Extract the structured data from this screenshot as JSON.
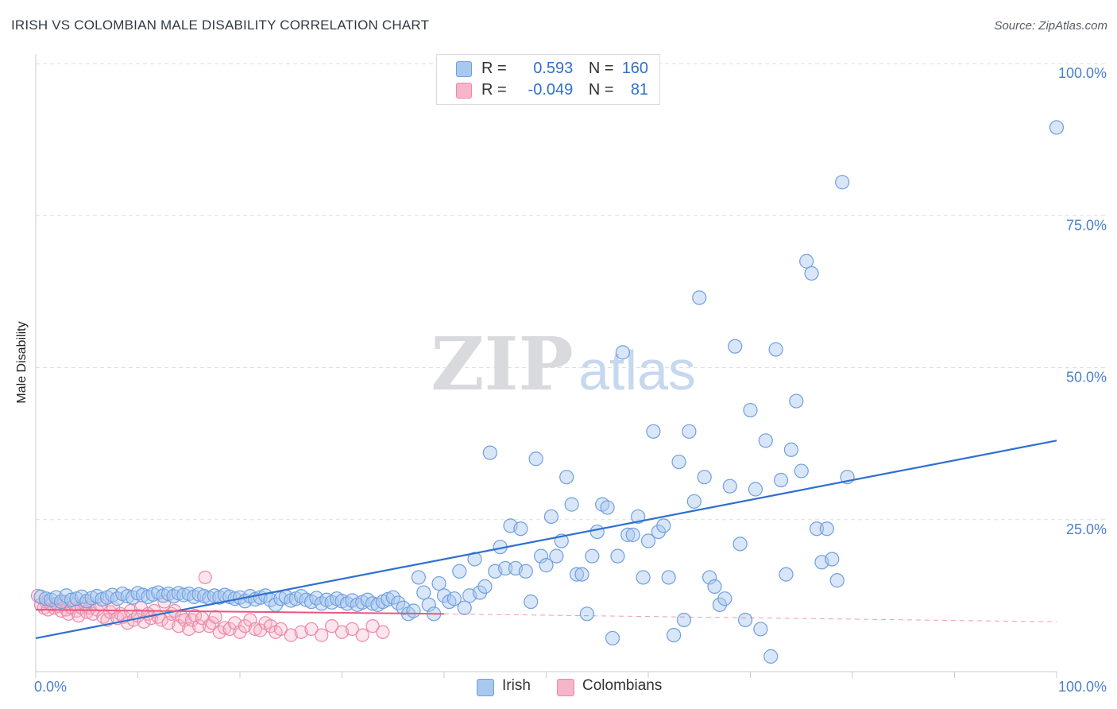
{
  "header": {
    "title": "IRISH VS COLOMBIAN MALE DISABILITY CORRELATION CHART",
    "source": "Source: ZipAtlas.com"
  },
  "watermark": {
    "zip": "ZIP",
    "atlas": "atlas"
  },
  "legend": {
    "rows": [
      {
        "r_label": "R =",
        "r_value": "0.593",
        "n_label": "N =",
        "n_value": "160"
      },
      {
        "r_label": "R =",
        "r_value": "-0.049",
        "n_label": "N =",
        "n_value": "81"
      }
    ]
  },
  "bottom_legend": {
    "irish": "Irish",
    "colombians": "Colombians"
  },
  "colors": {
    "irish_fill": "#a9c8f0",
    "irish_stroke": "#6f9fe0",
    "irish_line": "#2f6fd0",
    "colombian_fill": "#f7b5c9",
    "colombian_stroke": "#ec88a8",
    "colombian_line": "#e8577f",
    "tick_text": "#4a7fc9",
    "grid": "#dcdfe4"
  },
  "chart_data": {
    "type": "scatter",
    "title": "IRISH VS COLOMBIAN MALE DISABILITY CORRELATION CHART",
    "ylabel": "Male Disability",
    "xlabel": "",
    "xlim": [
      0,
      100
    ],
    "ylim": [
      0,
      100
    ],
    "y_ticks": [
      "100.0%",
      "75.0%",
      "50.0%",
      "25.0%"
    ],
    "y_tick_values": [
      100,
      75,
      50,
      25
    ],
    "x_tick_labels": [
      "0.0%",
      "100.0%"
    ],
    "grid": true,
    "legend_position": "top-center",
    "series": [
      {
        "name": "Irish",
        "R": 0.593,
        "N": 160,
        "trend": {
          "x": [
            0,
            100
          ],
          "y": [
            5.5,
            38.0
          ]
        },
        "points": [
          [
            0.5,
            12.3
          ],
          [
            1,
            12.0
          ],
          [
            1.5,
            11.8
          ],
          [
            2,
            12.2
          ],
          [
            2.5,
            11.5
          ],
          [
            3,
            12.5
          ],
          [
            3.5,
            11.8
          ],
          [
            4,
            12.0
          ],
          [
            4.5,
            12.3
          ],
          [
            5,
            11.6
          ],
          [
            5.5,
            12.1
          ],
          [
            6,
            12.4
          ],
          [
            6.5,
            11.9
          ],
          [
            7,
            12.2
          ],
          [
            7.5,
            12.6
          ],
          [
            8,
            12.0
          ],
          [
            8.5,
            12.8
          ],
          [
            9,
            12.4
          ],
          [
            9.5,
            12.2
          ],
          [
            10,
            12.9
          ],
          [
            10.5,
            12.6
          ],
          [
            11,
            12.3
          ],
          [
            11.5,
            12.7
          ],
          [
            12,
            13.0
          ],
          [
            12.5,
            12.5
          ],
          [
            13,
            12.8
          ],
          [
            13.5,
            12.4
          ],
          [
            14,
            12.9
          ],
          [
            14.5,
            12.6
          ],
          [
            15,
            12.8
          ],
          [
            15.5,
            12.3
          ],
          [
            16,
            12.7
          ],
          [
            16.5,
            12.4
          ],
          [
            17,
            12.1
          ],
          [
            17.5,
            12.5
          ],
          [
            18,
            12.2
          ],
          [
            18.5,
            12.6
          ],
          [
            19,
            12.3
          ],
          [
            19.5,
            12.0
          ],
          [
            20,
            12.2
          ],
          [
            20.5,
            11.6
          ],
          [
            21,
            12.4
          ],
          [
            21.5,
            11.9
          ],
          [
            22,
            12.2
          ],
          [
            22.5,
            12.5
          ],
          [
            23,
            11.8
          ],
          [
            23.5,
            11.0
          ],
          [
            24,
            12.0
          ],
          [
            24.5,
            12.3
          ],
          [
            25,
            11.7
          ],
          [
            25.5,
            12.0
          ],
          [
            26,
            12.4
          ],
          [
            26.5,
            11.8
          ],
          [
            27,
            11.5
          ],
          [
            27.5,
            12.1
          ],
          [
            28,
            11.2
          ],
          [
            28.5,
            11.8
          ],
          [
            29,
            11.4
          ],
          [
            29.5,
            12.0
          ],
          [
            30,
            11.6
          ],
          [
            30.5,
            11.2
          ],
          [
            31,
            11.7
          ],
          [
            31.5,
            11.0
          ],
          [
            32,
            11.4
          ],
          [
            32.5,
            11.8
          ],
          [
            33,
            11.2
          ],
          [
            33.5,
            11.0
          ],
          [
            34,
            11.5
          ],
          [
            34.5,
            11.9
          ],
          [
            35,
            12.2
          ],
          [
            35.5,
            11.3
          ],
          [
            36,
            10.5
          ],
          [
            36.5,
            9.5
          ],
          [
            37,
            10.0
          ],
          [
            37.5,
            15.5
          ],
          [
            38,
            13.0
          ],
          [
            38.5,
            11.0
          ],
          [
            39,
            9.5
          ],
          [
            39.5,
            14.5
          ],
          [
            40,
            12.5
          ],
          [
            40.5,
            11.5
          ],
          [
            41,
            12.0
          ],
          [
            41.5,
            16.5
          ],
          [
            42,
            10.5
          ],
          [
            42.5,
            12.5
          ],
          [
            43,
            18.5
          ],
          [
            43.5,
            13.0
          ],
          [
            44,
            14.0
          ],
          [
            44.5,
            36.0
          ],
          [
            45,
            16.5
          ],
          [
            45.5,
            20.5
          ],
          [
            46,
            17.0
          ],
          [
            46.5,
            24.0
          ],
          [
            47,
            17.0
          ],
          [
            47.5,
            23.5
          ],
          [
            48,
            16.5
          ],
          [
            48.5,
            11.5
          ],
          [
            49,
            35.0
          ],
          [
            49.5,
            19.0
          ],
          [
            50,
            17.5
          ],
          [
            50.5,
            25.5
          ],
          [
            51,
            19.0
          ],
          [
            51.5,
            21.5
          ],
          [
            52,
            32.0
          ],
          [
            52.5,
            27.5
          ],
          [
            53,
            16.0
          ],
          [
            53.5,
            16.0
          ],
          [
            54,
            9.5
          ],
          [
            54.5,
            19.0
          ],
          [
            55,
            23.0
          ],
          [
            55.5,
            27.5
          ],
          [
            56,
            27.0
          ],
          [
            56.5,
            5.5
          ],
          [
            57,
            19.0
          ],
          [
            57.5,
            52.5
          ],
          [
            58,
            22.5
          ],
          [
            58.5,
            22.5
          ],
          [
            59,
            25.5
          ],
          [
            59.5,
            15.5
          ],
          [
            60,
            21.5
          ],
          [
            60.5,
            39.5
          ],
          [
            61,
            23.0
          ],
          [
            61.5,
            24.0
          ],
          [
            62,
            15.5
          ],
          [
            62.5,
            6.0
          ],
          [
            63,
            34.5
          ],
          [
            63.5,
            8.5
          ],
          [
            64,
            39.5
          ],
          [
            64.5,
            28.0
          ],
          [
            65,
            61.5
          ],
          [
            65.5,
            32.0
          ],
          [
            66,
            15.5
          ],
          [
            66.5,
            14.0
          ],
          [
            67,
            11.0
          ],
          [
            67.5,
            12.0
          ],
          [
            68,
            30.5
          ],
          [
            68.5,
            53.5
          ],
          [
            69,
            21.0
          ],
          [
            69.5,
            8.5
          ],
          [
            70,
            43.0
          ],
          [
            70.5,
            30.0
          ],
          [
            71,
            7.0
          ],
          [
            71.5,
            38.0
          ],
          [
            72,
            2.5
          ],
          [
            72.5,
            53.0
          ],
          [
            73,
            31.5
          ],
          [
            73.5,
            16.0
          ],
          [
            74,
            36.5
          ],
          [
            74.5,
            44.5
          ],
          [
            75,
            33.0
          ],
          [
            75.5,
            67.5
          ],
          [
            76,
            65.5
          ],
          [
            76.5,
            23.5
          ],
          [
            77,
            18.0
          ],
          [
            77.5,
            23.5
          ],
          [
            78,
            18.5
          ],
          [
            78.5,
            15.0
          ],
          [
            79,
            80.5
          ],
          [
            79.5,
            32.0
          ],
          [
            100,
            89.5
          ]
        ]
      },
      {
        "name": "Colombians",
        "R": -0.049,
        "N": 81,
        "trend": {
          "x": [
            0,
            40,
            100
          ],
          "y": [
            10.2,
            9.5,
            8.2
          ],
          "solid_until_x": 40
        },
        "points": [
          [
            0.2,
            12.5
          ],
          [
            0.5,
            11.0
          ],
          [
            0.8,
            10.5
          ],
          [
            1,
            11.5
          ],
          [
            1.2,
            10.2
          ],
          [
            1.5,
            11.0
          ],
          [
            1.8,
            10.5
          ],
          [
            2,
            11.2
          ],
          [
            2.2,
            10.8
          ],
          [
            2.5,
            10.0
          ],
          [
            2.8,
            11.5
          ],
          [
            3,
            10.2
          ],
          [
            3.2,
            9.5
          ],
          [
            3.5,
            10.5
          ],
          [
            3.8,
            11.0
          ],
          [
            4,
            10.0
          ],
          [
            4.2,
            9.2
          ],
          [
            4.5,
            10.5
          ],
          [
            4.8,
            11.2
          ],
          [
            5,
            9.8
          ],
          [
            5.3,
            10.5
          ],
          [
            5.6,
            9.5
          ],
          [
            6,
            10.2
          ],
          [
            6.3,
            11.0
          ],
          [
            6.6,
            9.0
          ],
          [
            7,
            8.5
          ],
          [
            7.3,
            9.8
          ],
          [
            7.6,
            10.5
          ],
          [
            8,
            8.8
          ],
          [
            8.3,
            9.5
          ],
          [
            8.6,
            9.0
          ],
          [
            9,
            8.0
          ],
          [
            9.3,
            10.0
          ],
          [
            9.6,
            8.5
          ],
          [
            10,
            9.2
          ],
          [
            10.3,
            10.5
          ],
          [
            10.6,
            8.2
          ],
          [
            11,
            9.5
          ],
          [
            11.3,
            8.8
          ],
          [
            11.6,
            10.0
          ],
          [
            12,
            9.0
          ],
          [
            12.3,
            8.5
          ],
          [
            12.6,
            11.5
          ],
          [
            13,
            8.0
          ],
          [
            13.3,
            9.5
          ],
          [
            13.6,
            10.0
          ],
          [
            14,
            7.5
          ],
          [
            14.3,
            9.0
          ],
          [
            14.6,
            8.5
          ],
          [
            15,
            7.0
          ],
          [
            15.3,
            8.5
          ],
          [
            15.6,
            9.2
          ],
          [
            16,
            7.5
          ],
          [
            16.3,
            8.8
          ],
          [
            16.6,
            15.5
          ],
          [
            17,
            7.5
          ],
          [
            17.3,
            8.0
          ],
          [
            17.6,
            9.0
          ],
          [
            18,
            6.5
          ],
          [
            18.5,
            7.2
          ],
          [
            19,
            7.0
          ],
          [
            19.5,
            8.0
          ],
          [
            20,
            6.5
          ],
          [
            20.5,
            7.5
          ],
          [
            21,
            8.5
          ],
          [
            21.5,
            7.0
          ],
          [
            22,
            6.8
          ],
          [
            22.5,
            8.0
          ],
          [
            23,
            7.5
          ],
          [
            23.5,
            6.5
          ],
          [
            24,
            7.0
          ],
          [
            25,
            6.0
          ],
          [
            26,
            6.5
          ],
          [
            27,
            7.0
          ],
          [
            28,
            6.0
          ],
          [
            29,
            7.5
          ],
          [
            30,
            6.5
          ],
          [
            31,
            7.0
          ],
          [
            32,
            6.0
          ],
          [
            33,
            7.5
          ],
          [
            34,
            6.5
          ]
        ]
      }
    ]
  }
}
